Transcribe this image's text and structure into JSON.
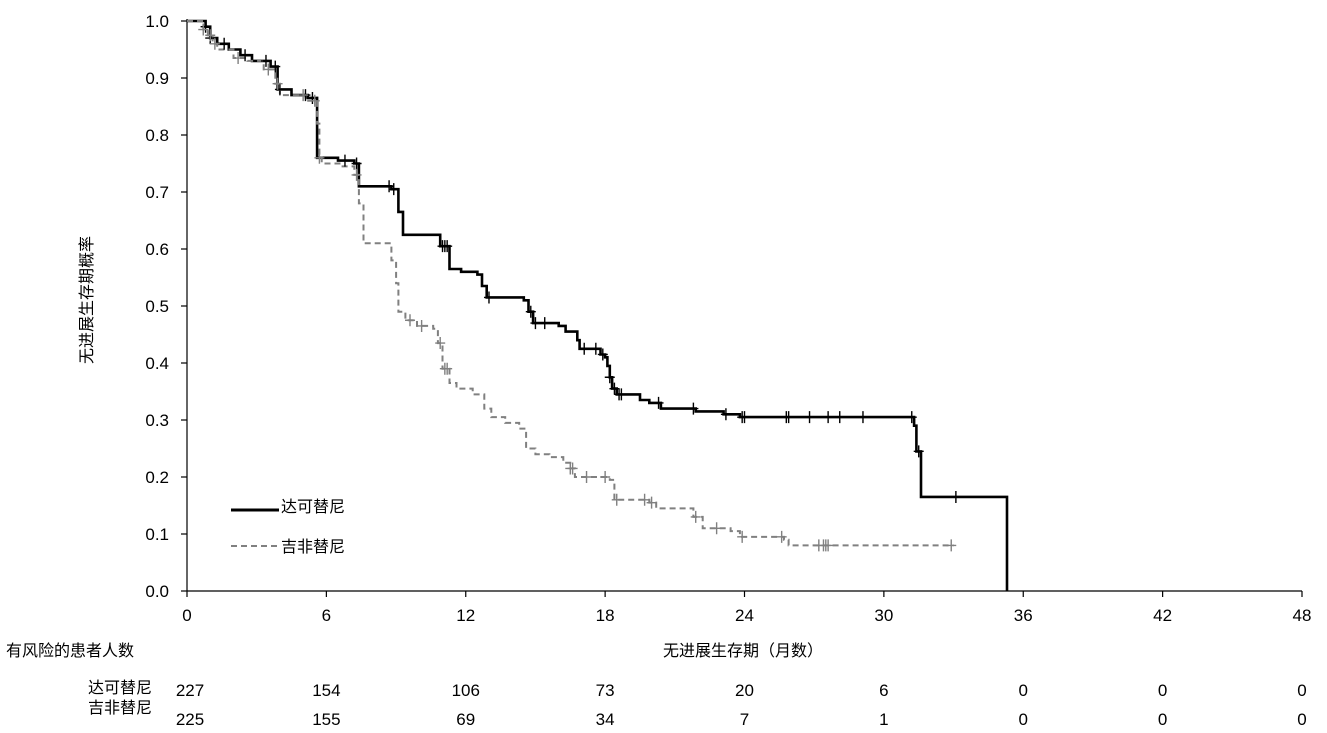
{
  "chart_data": {
    "type": "line",
    "title": "",
    "xlabel": "无进展生存期（月数）",
    "ylabel": "无进展生存期概率",
    "xlim": [
      0,
      48
    ],
    "ylim": [
      0,
      1.0
    ],
    "x_ticks": [
      "0",
      "6",
      "12",
      "18",
      "24",
      "30",
      "36",
      "42",
      "48"
    ],
    "y_ticks": [
      "0.0",
      "0.1",
      "0.2",
      "0.3",
      "0.4",
      "0.5",
      "0.6",
      "0.7",
      "0.8",
      "0.9",
      "1.0"
    ],
    "grid": false,
    "legend_position": "bottom-left",
    "series": [
      {
        "name": "达可替尼",
        "color": "#000000",
        "style": "solid",
        "steps": [
          [
            0,
            1.0
          ],
          [
            0.8,
            0.99
          ],
          [
            1.0,
            0.97
          ],
          [
            1.3,
            0.96
          ],
          [
            1.8,
            0.95
          ],
          [
            2.3,
            0.94
          ],
          [
            2.8,
            0.93
          ],
          [
            3.6,
            0.92
          ],
          [
            3.9,
            0.88
          ],
          [
            4.5,
            0.87
          ],
          [
            5.2,
            0.865
          ],
          [
            5.6,
            0.76
          ],
          [
            6.5,
            0.755
          ],
          [
            7.2,
            0.75
          ],
          [
            7.4,
            0.71
          ],
          [
            8.8,
            0.705
          ],
          [
            9.1,
            0.665
          ],
          [
            9.3,
            0.625
          ],
          [
            10.9,
            0.605
          ],
          [
            11.3,
            0.565
          ],
          [
            11.8,
            0.56
          ],
          [
            12.5,
            0.555
          ],
          [
            12.7,
            0.535
          ],
          [
            12.9,
            0.515
          ],
          [
            14.5,
            0.51
          ],
          [
            14.7,
            0.49
          ],
          [
            14.9,
            0.47
          ],
          [
            16.0,
            0.465
          ],
          [
            16.3,
            0.455
          ],
          [
            16.8,
            0.44
          ],
          [
            16.9,
            0.425
          ],
          [
            17.8,
            0.415
          ],
          [
            18.0,
            0.41
          ],
          [
            18.1,
            0.395
          ],
          [
            18.2,
            0.375
          ],
          [
            18.3,
            0.355
          ],
          [
            18.5,
            0.345
          ],
          [
            19.5,
            0.335
          ],
          [
            19.9,
            0.33
          ],
          [
            20.4,
            0.32
          ],
          [
            21.9,
            0.315
          ],
          [
            23.1,
            0.31
          ],
          [
            23.8,
            0.305
          ],
          [
            31.3,
            0.29
          ],
          [
            31.4,
            0.245
          ],
          [
            31.6,
            0.165
          ],
          [
            35.3,
            0.0
          ]
        ],
        "end": 35.3,
        "censor_x": [
          0.8,
          1.0,
          1.6,
          2.5,
          3.4,
          3.8,
          4.0,
          5.1,
          5.4,
          6.8,
          7.3,
          8.7,
          8.9,
          11.0,
          11.1,
          11.2,
          13.0,
          14.8,
          15.0,
          15.4,
          17.1,
          17.6,
          17.9,
          18.2,
          18.4,
          18.6,
          18.7,
          20.3,
          21.8,
          23.2,
          23.9,
          24.0,
          25.8,
          25.9,
          26.8,
          27.6,
          28.1,
          29.1,
          31.2,
          31.5,
          33.1
        ]
      },
      {
        "name": "吉非替尼",
        "color": "#808080",
        "style": "dashed",
        "steps": [
          [
            0,
            1.0
          ],
          [
            0.7,
            0.985
          ],
          [
            0.9,
            0.975
          ],
          [
            1.1,
            0.96
          ],
          [
            1.3,
            0.95
          ],
          [
            2.0,
            0.935
          ],
          [
            2.6,
            0.93
          ],
          [
            3.3,
            0.915
          ],
          [
            3.8,
            0.89
          ],
          [
            4.0,
            0.87
          ],
          [
            5.1,
            0.86
          ],
          [
            5.6,
            0.82
          ],
          [
            5.7,
            0.76
          ],
          [
            5.8,
            0.75
          ],
          [
            6.7,
            0.745
          ],
          [
            7.2,
            0.73
          ],
          [
            7.4,
            0.68
          ],
          [
            7.6,
            0.61
          ],
          [
            8.8,
            0.58
          ],
          [
            9.0,
            0.54
          ],
          [
            9.1,
            0.49
          ],
          [
            9.4,
            0.475
          ],
          [
            9.9,
            0.465
          ],
          [
            10.6,
            0.46
          ],
          [
            10.8,
            0.435
          ],
          [
            11.0,
            0.39
          ],
          [
            11.3,
            0.365
          ],
          [
            11.6,
            0.355
          ],
          [
            12.3,
            0.345
          ],
          [
            12.8,
            0.32
          ],
          [
            13.1,
            0.305
          ],
          [
            13.7,
            0.295
          ],
          [
            14.3,
            0.285
          ],
          [
            14.6,
            0.25
          ],
          [
            15.0,
            0.24
          ],
          [
            15.6,
            0.235
          ],
          [
            16.2,
            0.225
          ],
          [
            16.5,
            0.215
          ],
          [
            16.7,
            0.2
          ],
          [
            18.2,
            0.195
          ],
          [
            18.4,
            0.16
          ],
          [
            19.9,
            0.155
          ],
          [
            20.2,
            0.145
          ],
          [
            21.8,
            0.13
          ],
          [
            22.2,
            0.11
          ],
          [
            23.4,
            0.105
          ],
          [
            23.8,
            0.095
          ],
          [
            25.7,
            0.09
          ],
          [
            25.9,
            0.08
          ]
        ],
        "end": 33.0,
        "censor_x": [
          0.7,
          1.0,
          1.2,
          2.2,
          3.5,
          3.9,
          5.0,
          5.5,
          5.7,
          7.3,
          9.6,
          10.1,
          10.9,
          11.1,
          11.2,
          16.5,
          16.6,
          17.2,
          18.0,
          18.5,
          19.7,
          20.0,
          21.9,
          22.8,
          23.9,
          25.6,
          27.2,
          27.4,
          27.5,
          27.6,
          32.9
        ]
      }
    ],
    "risk_table": {
      "title": "有风险的患者人数",
      "x": [
        0,
        6,
        12,
        18,
        24,
        30,
        36,
        42,
        48
      ],
      "rows": [
        {
          "name": "达可替尼",
          "values": [
            "227",
            "154",
            "106",
            "73",
            "20",
            "6",
            "0",
            "0",
            "0"
          ]
        },
        {
          "name": "吉非替尼",
          "values": [
            "225",
            "155",
            "69",
            "34",
            "7",
            "1",
            "0",
            "0",
            "0"
          ]
        }
      ]
    }
  }
}
